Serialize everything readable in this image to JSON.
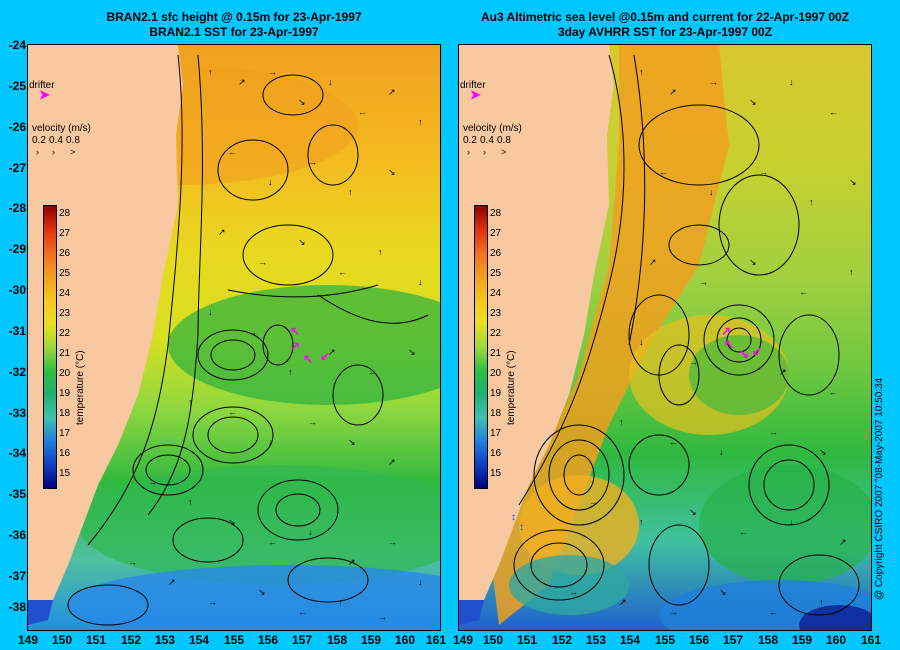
{
  "left": {
    "title_line1": "BRAN2.1 sfc height @ 0.15m for 23-Apr-1997",
    "title_line2": "BRAN2.1 SST for 23-Apr-1997"
  },
  "right": {
    "title_line1": "Au3 Altimetric sea level  @0.15m and current for 22-Apr-1997 00Z",
    "title_line2": "3day AVHRR SST for 23-Apr-1997 00Z"
  },
  "y_ticks": [
    "-24",
    "-25",
    "-26",
    "-27",
    "-28",
    "-29",
    "-30",
    "-31",
    "-32",
    "-33",
    "-34",
    "-35",
    "-36",
    "-37",
    "-38"
  ],
  "x_ticks_left": [
    "149",
    "150",
    "151",
    "152",
    "153",
    "154",
    "155",
    "156",
    "157",
    "158",
    "159",
    "160",
    "161"
  ],
  "x_ticks_right": [
    "149",
    "150",
    "151",
    "152",
    "153",
    "154",
    "155",
    "156",
    "157",
    "158",
    "159",
    "160",
    "161"
  ],
  "drifter_label": "drifter",
  "velocity": {
    "title": "velocity (m/s)",
    "values": [
      "0.2",
      "0.4",
      "0.8"
    ]
  },
  "colorbar": {
    "title": "temperature (°C)",
    "ticks": [
      "28",
      "27",
      "26",
      "25",
      "24",
      "23",
      "22",
      "21",
      "20",
      "19",
      "18",
      "17",
      "16",
      "15"
    ]
  },
  "copyright": "@ Copyright CSIRO 2007 \"08-May-2007 10:50:34",
  "colors": {
    "background": "#00c8ff",
    "land": "#f8c8a0",
    "drifter": "#ff00ff"
  }
}
